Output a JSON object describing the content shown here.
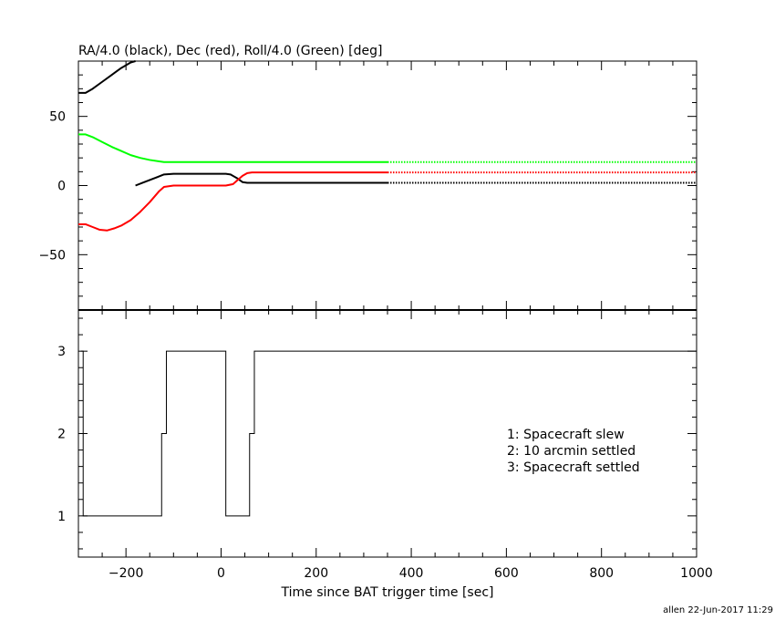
{
  "chart_data": [
    {
      "type": "line",
      "title": "RA/4.0 (black), Dec (red), Roll/4.0 (Green) [deg]",
      "xlim": [
        -300,
        1000
      ],
      "ylim": [
        -90,
        90
      ],
      "yticks": [
        -50,
        0,
        50
      ],
      "series": [
        {
          "color": "#000000",
          "x": [
            -300,
            -285,
            -270,
            -250,
            -230,
            -210,
            -190,
            -180
          ],
          "y": [
            67,
            67,
            70,
            75,
            80,
            85,
            89,
            90
          ],
          "dotted_from_index": null
        },
        {
          "color": "#000000",
          "x": [
            -180,
            -165,
            -150,
            -135,
            -120,
            -100,
            -60,
            -20,
            10,
            20,
            35,
            45,
            55,
            100,
            200,
            300,
            350,
            500,
            700,
            1000
          ],
          "y": [
            0,
            2,
            4,
            6,
            8,
            8.5,
            8.5,
            8.5,
            8.5,
            8,
            5,
            2.5,
            2,
            2,
            2,
            2,
            2,
            2,
            2,
            2
          ],
          "dotted_from_index": 16
        },
        {
          "color": "#ff0000",
          "x": [
            -300,
            -285,
            -270,
            -255,
            -240,
            -225,
            -210,
            -190,
            -170,
            -150,
            -130,
            -120,
            -100,
            -60,
            -20,
            10,
            25,
            35,
            45,
            55,
            65,
            100,
            200,
            300,
            350,
            500,
            700,
            1000
          ],
          "y": [
            -28,
            -28,
            -30,
            -32,
            -32.5,
            -31,
            -29,
            -25,
            -19,
            -12,
            -4,
            -1,
            0,
            0,
            0,
            0,
            1,
            4,
            7,
            9,
            9.5,
            9.5,
            9.5,
            9.5,
            9.5,
            9.5,
            9.5,
            9.5
          ],
          "dotted_from_index": 24
        },
        {
          "color": "#00ff00",
          "x": [
            -300,
            -285,
            -270,
            -250,
            -230,
            -210,
            -190,
            -170,
            -150,
            -130,
            -120,
            -100,
            0,
            100,
            200,
            300,
            350,
            500,
            700,
            1000
          ],
          "y": [
            37,
            37,
            35,
            31.5,
            28,
            25,
            22,
            20,
            18.5,
            17.5,
            17,
            17,
            17,
            17,
            17,
            17,
            17,
            17,
            17,
            17
          ],
          "dotted_from_index": 16
        }
      ]
    },
    {
      "type": "line",
      "xlabel": "Time since BAT trigger time [sec]",
      "xlim": [
        -300,
        1000
      ],
      "ylim": [
        0.5,
        3.5
      ],
      "yticks": [
        1,
        2,
        3
      ],
      "xticks": [
        -200,
        0,
        200,
        400,
        600,
        800,
        1000
      ],
      "xtick_labels": [
        "−200",
        "0",
        "200",
        "400",
        "600",
        "800",
        "1000"
      ],
      "legend": [
        "1: Spacecraft slew",
        "2: 10 arcmin settled",
        "3: Spacecraft settled"
      ],
      "legend_placement": "center-right",
      "series": [
        {
          "color": "#000000",
          "x": [
            -295,
            -295,
            -290,
            -290,
            -125,
            -125,
            -115,
            -115,
            10,
            10,
            60,
            60,
            70,
            70,
            1000
          ],
          "y": [
            3,
            3,
            3,
            1,
            1,
            2,
            2,
            3,
            3,
            1,
            1,
            2,
            2,
            3,
            3
          ]
        }
      ]
    }
  ],
  "footer": "allen 22-Jun-2017 11:29"
}
